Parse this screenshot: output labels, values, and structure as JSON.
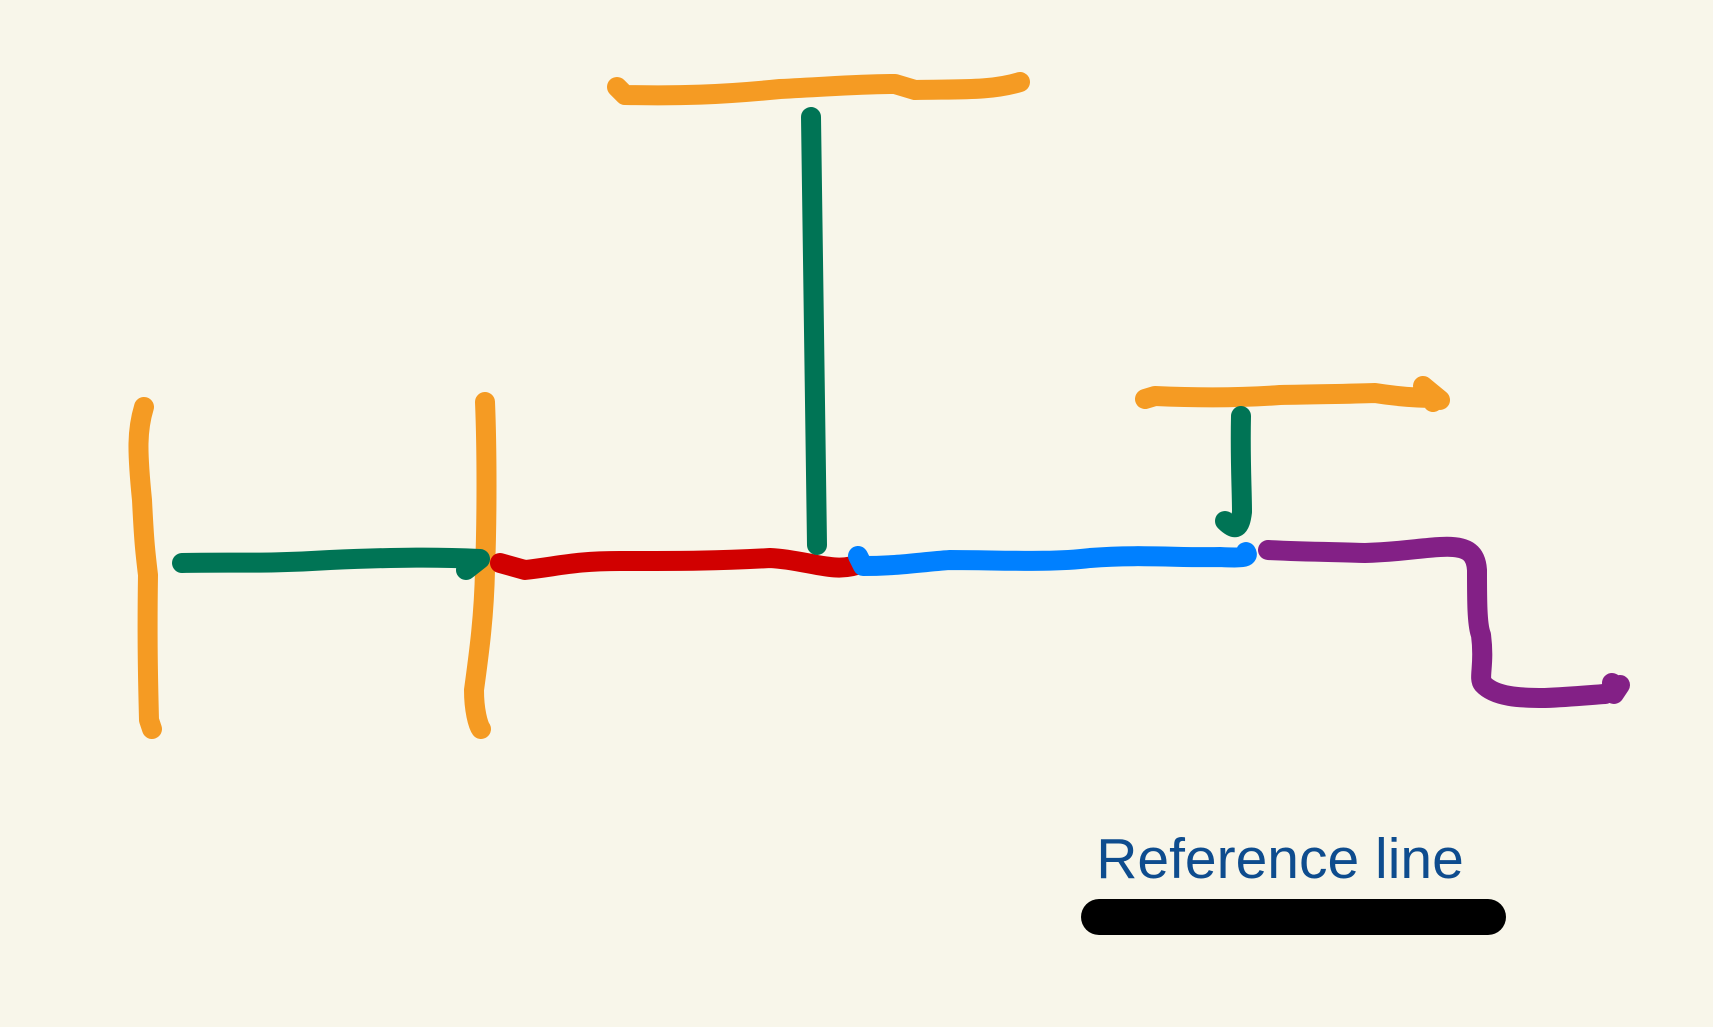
{
  "colors": {
    "background": "#F8F6EA",
    "orange": "#F59B23",
    "green": "#007455",
    "red": "#D10000",
    "blue": "#0080FF",
    "purple": "#832086",
    "reference_line": "#000000",
    "reference_label": "#0E4C8E"
  },
  "reference": {
    "label": "Reference line"
  }
}
